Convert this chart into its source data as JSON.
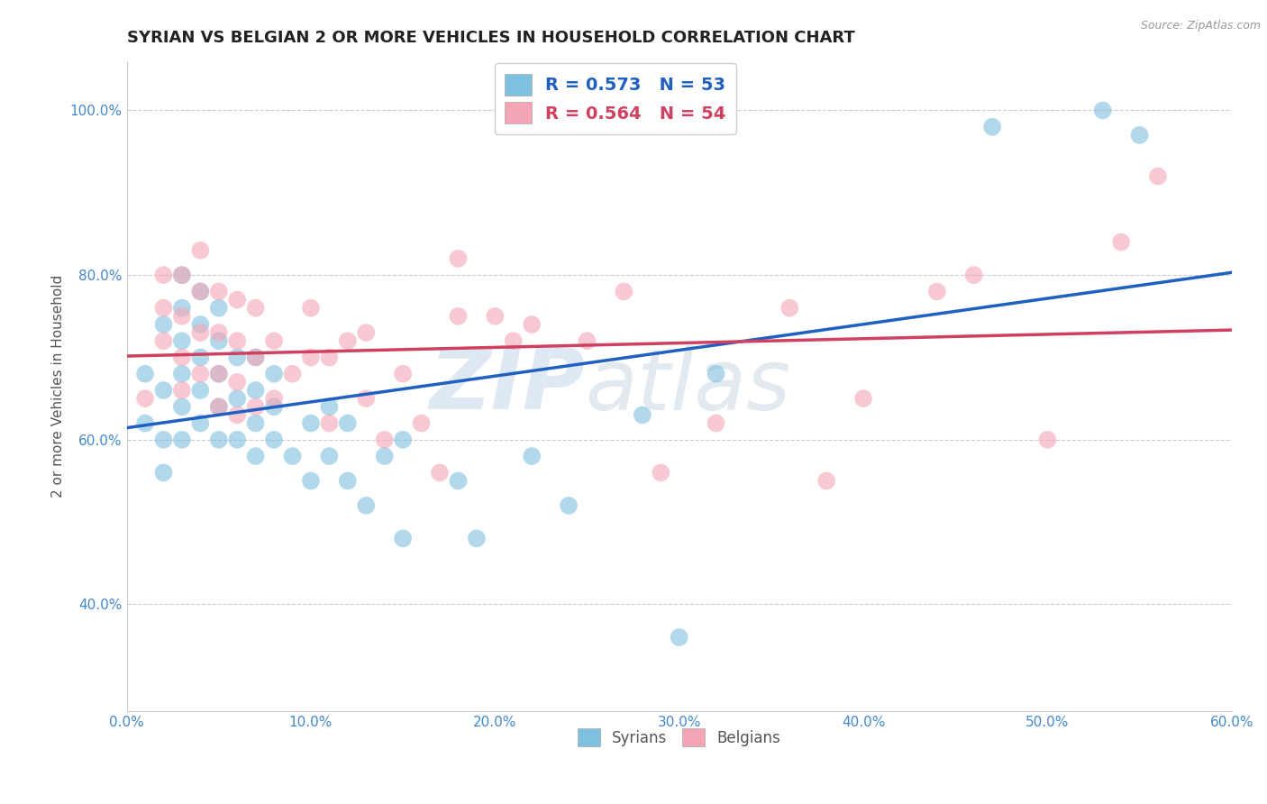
{
  "title": "SYRIAN VS BELGIAN 2 OR MORE VEHICLES IN HOUSEHOLD CORRELATION CHART",
  "source_text": "Source: ZipAtlas.com",
  "ylabel": "2 or more Vehicles in Household",
  "xlim": [
    0.0,
    0.6
  ],
  "ylim": [
    0.27,
    1.06
  ],
  "ytick_labels": [
    "40.0%",
    "60.0%",
    "80.0%",
    "100.0%"
  ],
  "ytick_vals": [
    0.4,
    0.6,
    0.8,
    1.0
  ],
  "xtick_labels": [
    "0.0%",
    "10.0%",
    "20.0%",
    "30.0%",
    "40.0%",
    "50.0%",
    "60.0%"
  ],
  "xtick_vals": [
    0.0,
    0.1,
    0.2,
    0.3,
    0.4,
    0.5,
    0.6
  ],
  "legend_blue_label": "R = 0.573   N = 53",
  "legend_pink_label": "R = 0.564   N = 54",
  "blue_color": "#7fbfdf",
  "pink_color": "#f4a5b5",
  "blue_line_color": "#2060c0",
  "pink_line_color": "#d04060",
  "watermark_zip": "ZIP",
  "watermark_atlas": "atlas",
  "grid_color": "#cccccc",
  "title_fontsize": 13,
  "axis_label_fontsize": 11,
  "tick_fontsize": 11,
  "background_color": "#ffffff",
  "syrian_x": [
    0.01,
    0.01,
    0.02,
    0.02,
    0.02,
    0.02,
    0.03,
    0.03,
    0.03,
    0.03,
    0.03,
    0.03,
    0.04,
    0.04,
    0.04,
    0.04,
    0.04,
    0.05,
    0.05,
    0.05,
    0.05,
    0.05,
    0.06,
    0.06,
    0.06,
    0.07,
    0.07,
    0.07,
    0.07,
    0.08,
    0.08,
    0.08,
    0.09,
    0.1,
    0.1,
    0.11,
    0.11,
    0.12,
    0.12,
    0.13,
    0.14,
    0.15,
    0.15,
    0.18,
    0.19,
    0.22,
    0.24,
    0.28,
    0.3,
    0.32,
    0.47,
    0.53,
    0.55
  ],
  "syrian_y": [
    0.62,
    0.68,
    0.56,
    0.6,
    0.66,
    0.74,
    0.6,
    0.64,
    0.68,
    0.72,
    0.76,
    0.8,
    0.62,
    0.66,
    0.7,
    0.74,
    0.78,
    0.6,
    0.64,
    0.68,
    0.72,
    0.76,
    0.6,
    0.65,
    0.7,
    0.58,
    0.62,
    0.66,
    0.7,
    0.6,
    0.64,
    0.68,
    0.58,
    0.55,
    0.62,
    0.58,
    0.64,
    0.55,
    0.62,
    0.52,
    0.58,
    0.48,
    0.6,
    0.55,
    0.48,
    0.58,
    0.52,
    0.63,
    0.36,
    0.68,
    0.98,
    1.0,
    0.97
  ],
  "belgian_x": [
    0.01,
    0.02,
    0.02,
    0.02,
    0.03,
    0.03,
    0.03,
    0.03,
    0.04,
    0.04,
    0.04,
    0.04,
    0.05,
    0.05,
    0.05,
    0.05,
    0.06,
    0.06,
    0.06,
    0.06,
    0.07,
    0.07,
    0.07,
    0.08,
    0.08,
    0.09,
    0.1,
    0.1,
    0.11,
    0.11,
    0.12,
    0.13,
    0.13,
    0.14,
    0.15,
    0.16,
    0.17,
    0.18,
    0.18,
    0.2,
    0.21,
    0.22,
    0.25,
    0.27,
    0.29,
    0.32,
    0.36,
    0.38,
    0.4,
    0.44,
    0.46,
    0.5,
    0.54,
    0.56
  ],
  "belgian_y": [
    0.65,
    0.72,
    0.76,
    0.8,
    0.66,
    0.7,
    0.75,
    0.8,
    0.68,
    0.73,
    0.78,
    0.83,
    0.64,
    0.68,
    0.73,
    0.78,
    0.63,
    0.67,
    0.72,
    0.77,
    0.64,
    0.7,
    0.76,
    0.65,
    0.72,
    0.68,
    0.7,
    0.76,
    0.62,
    0.7,
    0.72,
    0.65,
    0.73,
    0.6,
    0.68,
    0.62,
    0.56,
    0.75,
    0.82,
    0.75,
    0.72,
    0.74,
    0.72,
    0.78,
    0.56,
    0.62,
    0.76,
    0.55,
    0.65,
    0.78,
    0.8,
    0.6,
    0.84,
    0.92
  ]
}
